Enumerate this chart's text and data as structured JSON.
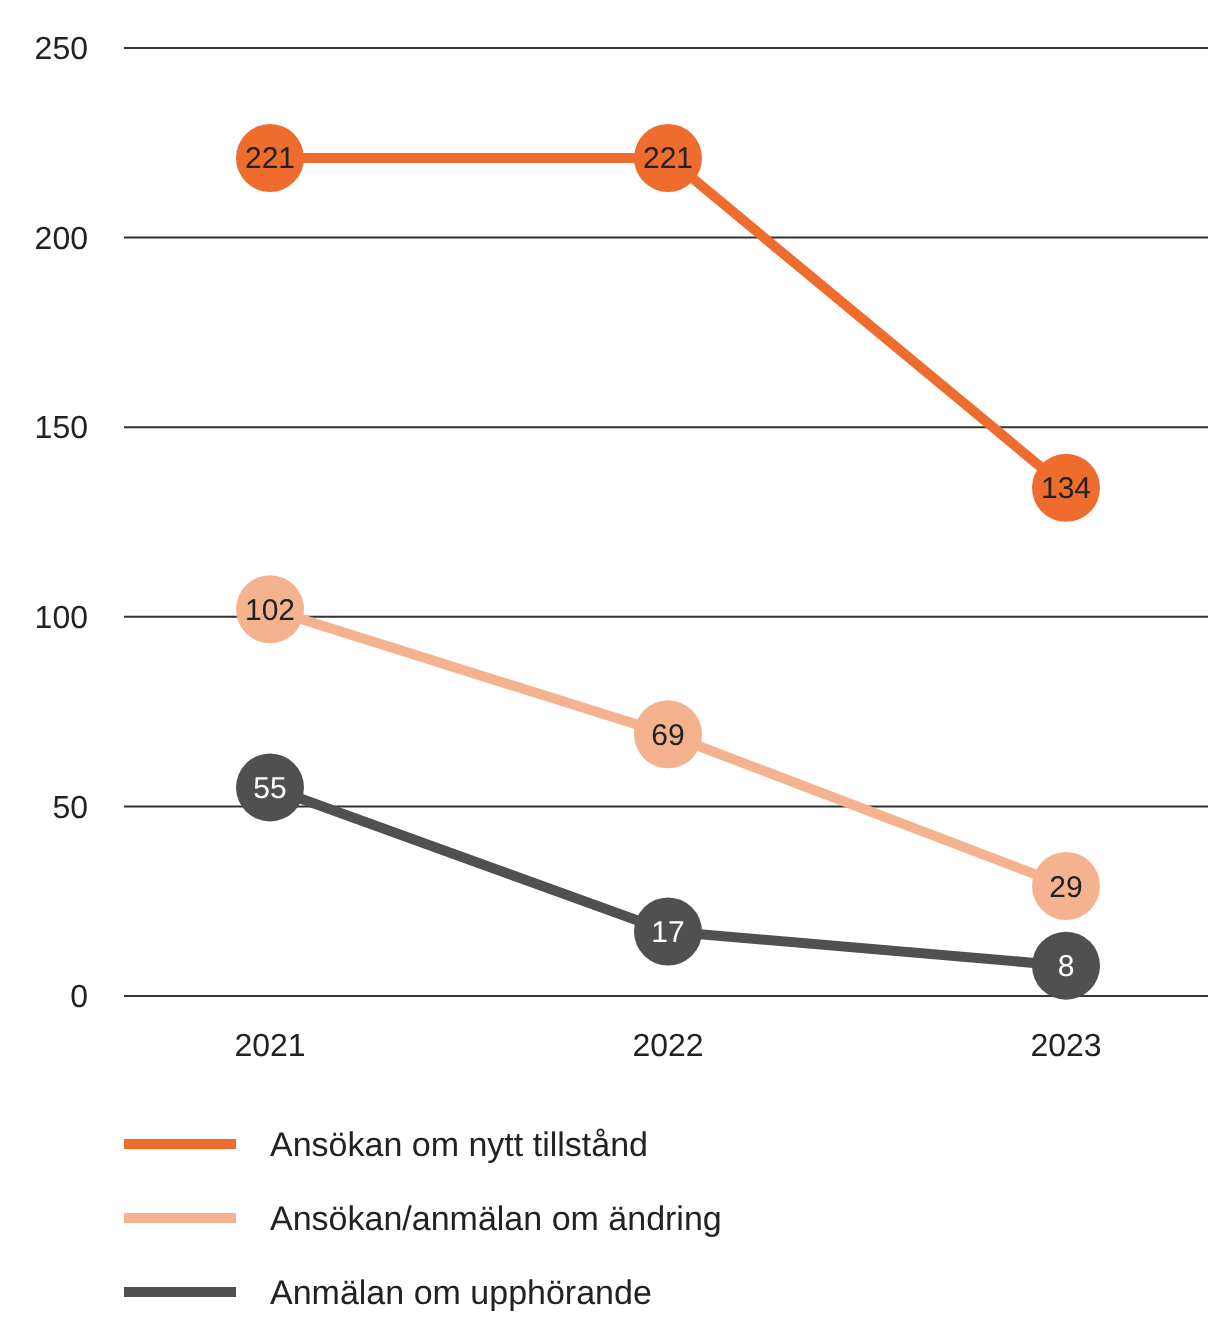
{
  "chart_data": {
    "type": "line",
    "categories": [
      "2021",
      "2022",
      "2023"
    ],
    "series": [
      {
        "name": "Ansökan om nytt tillstånd",
        "color": "#ee6c2d",
        "values": [
          221,
          221,
          134
        ]
      },
      {
        "name": "Ansökan/anmälan om ändring",
        "color": "#f4b28f",
        "values": [
          102,
          69,
          29
        ]
      },
      {
        "name": "Anmälan om upphörande",
        "color": "#505050",
        "values": [
          55,
          17,
          8
        ]
      }
    ],
    "ylim": [
      0,
      250
    ],
    "yticks": [
      0,
      50,
      100,
      150,
      200,
      250
    ],
    "grid": "y",
    "legend": "bottom",
    "marker": "circle",
    "line_style": "solid",
    "data_labels": true
  }
}
